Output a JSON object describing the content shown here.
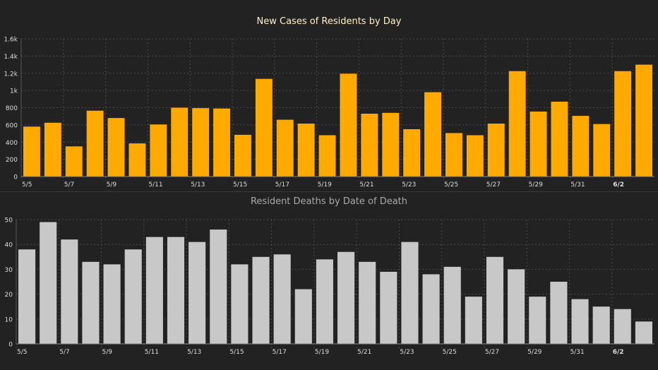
{
  "colors": {
    "background": "#222222",
    "cases_bar": "#FFAA00",
    "deaths_bar": "#C8C8C8",
    "grid": "#4a4a4a",
    "axis_text": "#dddddd",
    "title_cases": "#FFF0C8",
    "title_deaths": "#A8A8A8"
  },
  "chart_data": [
    {
      "type": "bar",
      "title": "New Cases of Residents by Day",
      "xlabel": "",
      "ylabel": "",
      "ylim": [
        0,
        1600
      ],
      "yticks": [
        0,
        200,
        400,
        600,
        800,
        1000,
        1200,
        1400,
        1600
      ],
      "ytick_labels": [
        "0",
        "200",
        "400",
        "600",
        "800",
        "1k",
        "1.2k",
        "1.4k",
        "1.6k"
      ],
      "categories": [
        "5/5",
        "5/6",
        "5/7",
        "5/8",
        "5/9",
        "5/10",
        "5/11",
        "5/12",
        "5/13",
        "5/14",
        "5/15",
        "5/16",
        "5/17",
        "5/18",
        "5/19",
        "5/20",
        "5/21",
        "5/22",
        "5/23",
        "5/24",
        "5/25",
        "5/26",
        "5/27",
        "5/28",
        "5/29",
        "5/30",
        "5/31",
        "6/1",
        "6/2",
        "6/3"
      ],
      "xtick_labels": [
        "5/5",
        "5/7",
        "5/9",
        "5/11",
        "5/13",
        "5/15",
        "5/17",
        "5/19",
        "5/21",
        "5/23",
        "5/25",
        "5/27",
        "5/29",
        "5/31",
        "6/2"
      ],
      "values": [
        580,
        625,
        350,
        765,
        680,
        385,
        605,
        800,
        795,
        790,
        485,
        1135,
        660,
        615,
        480,
        1195,
        730,
        740,
        550,
        980,
        505,
        480,
        615,
        1225,
        755,
        870,
        705,
        610,
        1225,
        1300
      ],
      "grid": true
    },
    {
      "type": "bar",
      "title": "Resident Deaths by Date of Death",
      "xlabel": "",
      "ylabel": "",
      "ylim": [
        0,
        50
      ],
      "yticks": [
        0,
        10,
        20,
        30,
        40,
        50
      ],
      "ytick_labels": [
        "0",
        "10",
        "20",
        "30",
        "40",
        "50"
      ],
      "categories": [
        "5/5",
        "5/6",
        "5/7",
        "5/8",
        "5/9",
        "5/10",
        "5/11",
        "5/12",
        "5/13",
        "5/14",
        "5/15",
        "5/16",
        "5/17",
        "5/18",
        "5/19",
        "5/20",
        "5/21",
        "5/22",
        "5/23",
        "5/24",
        "5/25",
        "5/26",
        "5/27",
        "5/28",
        "5/29",
        "5/30",
        "5/31",
        "6/1",
        "6/2",
        "6/3"
      ],
      "xtick_labels": [
        "5/5",
        "5/7",
        "5/9",
        "5/11",
        "5/13",
        "5/15",
        "5/17",
        "5/19",
        "5/21",
        "5/23",
        "5/25",
        "5/27",
        "5/29",
        "5/31",
        "6/2"
      ],
      "values": [
        38,
        49,
        42,
        33,
        32,
        38,
        43,
        43,
        41,
        46,
        32,
        35,
        36,
        22,
        34,
        37,
        33,
        29,
        41,
        28,
        31,
        19,
        35,
        30,
        19,
        25,
        18,
        15,
        14,
        9
      ],
      "grid": true
    }
  ]
}
